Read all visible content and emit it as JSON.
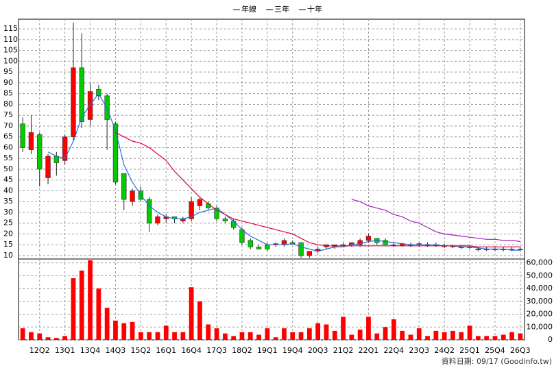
{
  "chart_data": {
    "type": "candlestick",
    "categories": [
      null,
      null,
      "12Q2",
      null,
      null,
      "13Q1",
      null,
      null,
      "13Q4",
      null,
      null,
      "14Q3",
      null,
      null,
      "15Q2",
      null,
      null,
      "16Q1",
      null,
      null,
      "16Q4",
      null,
      null,
      "17Q3",
      null,
      null,
      "18Q2",
      null,
      null,
      "19Q1",
      null,
      null,
      "19Q4",
      null,
      null,
      "20Q3",
      null,
      null,
      "21Q2",
      null,
      null,
      "22Q1",
      null,
      null,
      "22Q4",
      null,
      null,
      "23Q3",
      null,
      null,
      "24Q2",
      null,
      null,
      "25Q1",
      null,
      null,
      "25Q4",
      null,
      null,
      "26Q3"
    ],
    "open": [
      71,
      59,
      66,
      46,
      56,
      54,
      65,
      97,
      73,
      87,
      84,
      71,
      48,
      35,
      40,
      36,
      25,
      27,
      28,
      26,
      27,
      33,
      34,
      32,
      27,
      26,
      22,
      17,
      14,
      15,
      15,
      15,
      16,
      16,
      10,
      12,
      14,
      14,
      15,
      15,
      15,
      17,
      18,
      17,
      15,
      14.5,
      15,
      15,
      15,
      15,
      14.5,
      14,
      14,
      14,
      13,
      13,
      13,
      13,
      13,
      13
    ],
    "high": [
      74,
      75,
      67,
      57,
      58,
      66,
      118,
      113,
      90,
      89,
      85,
      72,
      48,
      41,
      42,
      37,
      29,
      29,
      28,
      28,
      37,
      37,
      35,
      33,
      28,
      27,
      23,
      18,
      15,
      16,
      16,
      18,
      17,
      16,
      12,
      14,
      15,
      15,
      16,
      16,
      18,
      20,
      18,
      18,
      16,
      16,
      16,
      16,
      16,
      16,
      15.5,
      15,
      15,
      15,
      14,
      14,
      14,
      14,
      14,
      14
    ],
    "low": [
      58,
      57,
      42,
      43,
      47,
      52,
      63,
      69,
      70,
      82,
      59,
      43,
      31,
      33,
      35,
      21,
      24,
      25,
      25,
      25,
      26,
      31,
      31,
      26,
      25,
      22,
      15,
      13,
      13,
      12,
      14,
      14,
      15,
      9,
      9,
      11,
      13,
      13,
      14,
      14,
      14,
      16,
      15,
      15,
      14,
      14,
      14,
      14,
      14,
      14,
      13.5,
      13.5,
      13,
      13,
      12,
      12,
      12,
      12,
      12,
      12
    ],
    "close": [
      60,
      67,
      50,
      56,
      53,
      65,
      97,
      72,
      86,
      84,
      73,
      44,
      36,
      40,
      36,
      25,
      28,
      28,
      27,
      27,
      35,
      36,
      32,
      27,
      26,
      23,
      16,
      14,
      13,
      13,
      15.5,
      17,
      15.5,
      10,
      12,
      13,
      15,
      15,
      15,
      16,
      17,
      19,
      16,
      15,
      15,
      15.5,
      15,
      15.5,
      15,
      15,
      14.5,
      14.5,
      14,
      14,
      13,
      13,
      13,
      13,
      13,
      13
    ],
    "up_color": "#ff0000",
    "down_color": "#00cc00",
    "series": [
      {
        "name": "年線",
        "color": "#1e6fd9",
        "values": [
          null,
          null,
          null,
          58,
          56,
          55,
          63,
          74,
          80,
          85,
          78,
          68,
          52,
          44,
          38,
          33,
          30,
          28,
          27,
          27,
          28,
          30,
          31,
          32,
          29,
          26,
          22,
          19,
          17,
          15,
          15,
          15,
          15.5,
          14,
          13,
          12,
          13,
          14,
          14,
          15,
          15.5,
          16.5,
          17,
          16.5,
          16,
          15.5,
          15,
          15,
          15,
          15,
          14.5,
          14.5,
          14,
          14,
          13.5,
          13,
          13,
          13,
          12.5,
          12.5
        ]
      },
      {
        "name": "三年",
        "color": "#dd0044",
        "values": [
          null,
          null,
          null,
          null,
          null,
          null,
          null,
          null,
          null,
          null,
          null,
          67,
          65,
          63,
          62,
          60,
          57,
          54,
          49,
          45,
          41,
          37,
          34,
          31,
          29,
          27,
          26,
          25,
          24,
          23,
          22,
          21,
          20,
          18,
          16,
          15,
          14.5,
          14.5,
          14.5,
          14.5,
          14.5,
          14.5,
          14.5,
          14.5,
          14.5,
          14.5,
          14.5,
          14.5,
          14.5,
          14.5,
          14.5,
          14.5,
          14.5,
          14.5,
          14,
          14,
          14,
          14,
          14,
          14
        ]
      },
      {
        "name": "十年",
        "color": "#a020c0",
        "values": [
          null,
          null,
          null,
          null,
          null,
          null,
          null,
          null,
          null,
          null,
          null,
          null,
          null,
          null,
          null,
          null,
          null,
          null,
          null,
          null,
          null,
          null,
          null,
          null,
          null,
          null,
          null,
          null,
          null,
          null,
          null,
          null,
          null,
          null,
          null,
          null,
          null,
          null,
          null,
          36,
          35,
          33,
          32,
          31,
          29,
          28,
          26,
          25,
          23,
          21,
          20,
          19.5,
          19,
          18.5,
          18,
          17.5,
          17.5,
          17,
          17,
          16.5
        ]
      }
    ],
    "volume": {
      "color": "#ff0000",
      "values": [
        9000,
        6000,
        5000,
        2000,
        1500,
        3000,
        48000,
        54000,
        62000,
        40000,
        25000,
        15000,
        13000,
        14000,
        6000,
        6000,
        6000,
        11000,
        6000,
        6000,
        41000,
        30000,
        12000,
        9000,
        5000,
        3000,
        6000,
        6000,
        4000,
        9000,
        2000,
        9000,
        6000,
        6000,
        9000,
        13000,
        12000,
        7000,
        18000,
        4000,
        8000,
        18000,
        5000,
        10000,
        16000,
        7000,
        4000,
        9000,
        3000,
        7000,
        6000,
        7000,
        6000,
        11000,
        3000,
        3000,
        3000,
        4000,
        6000,
        5000
      ]
    },
    "ylim": [
      8.4,
      119.5
    ],
    "yticks": [
      10,
      15,
      20,
      25,
      30,
      35,
      40,
      45,
      50,
      55,
      60,
      65,
      70,
      75,
      80,
      85,
      90,
      95,
      100,
      105,
      110,
      115
    ],
    "y2lim": [
      0,
      63000
    ],
    "y2ticks": [
      0,
      {
        "value": 10000,
        "label": "10,000"
      },
      {
        "value": 20000,
        "label": "20,000"
      },
      {
        "value": 30000,
        "label": "30,000"
      },
      {
        "value": 40000,
        "label": "40,000"
      },
      {
        "value": 50000,
        "label": "50,000"
      },
      {
        "value": 60000,
        "label": "60,000"
      }
    ],
    "grid": true,
    "legend": "top",
    "source": "資料日期: 09/17 (Goodinfo.tw)"
  }
}
